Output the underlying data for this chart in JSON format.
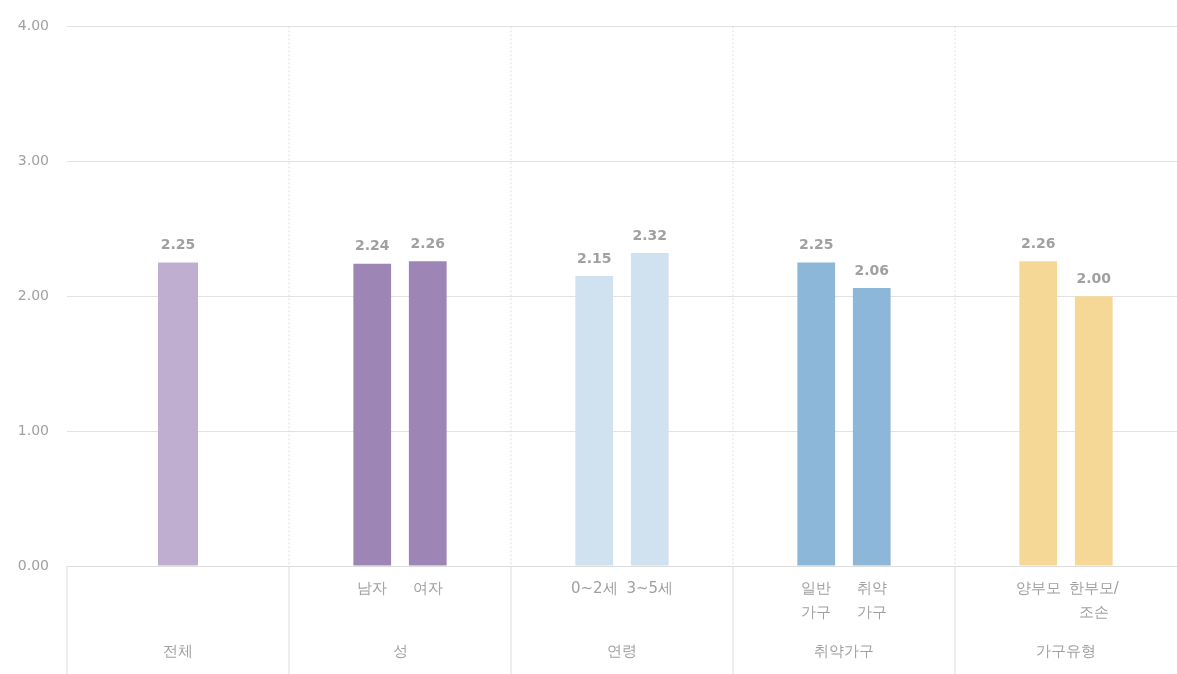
{
  "chart_data": {
    "type": "bar",
    "categories": [
      "전체",
      "성",
      "연령",
      "취약가구",
      "가구유형"
    ],
    "series": [
      {
        "colors": [
          "#c0aed0",
          "#9d85b6",
          "#d0e1f0",
          "#8cb7d8",
          "#f5d896"
        ],
        "values": [
          2.25,
          2.24,
          2.15,
          2.25,
          2.26
        ],
        "value_labels": [
          "2.25",
          "2.24",
          "2.15",
          "2.25",
          "2.26"
        ]
      },
      {
        "colors": [
          null,
          "#9d85b6",
          "#d0e1f0",
          "#8cb7d8",
          "#f5d896"
        ],
        "values": [
          null,
          2.26,
          2.32,
          2.06,
          2.0
        ],
        "value_labels": [
          null,
          "2.26",
          "2.32",
          "2.06",
          "2.00"
        ]
      }
    ],
    "annotations": [
      "남자",
      "여자",
      "0~2세",
      "3~5세",
      "일반\n가구",
      "취약\n가구",
      "양부모",
      "한부모/\n조손"
    ],
    "ylim": [
      0,
      4
    ],
    "yticks": [
      {
        "value": 0,
        "label": "0.00"
      },
      {
        "value": 1,
        "label": "1.00"
      },
      {
        "value": 2,
        "label": "2.00"
      },
      {
        "value": 3,
        "label": "3.00"
      },
      {
        "value": 4,
        "label": "4.00"
      }
    ],
    "grid": true,
    "legend": false
  }
}
